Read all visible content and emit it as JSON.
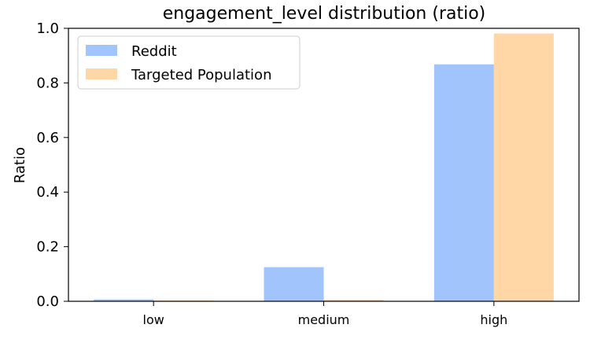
{
  "chart_data": {
    "type": "bar",
    "title": "engagement_level distribution (ratio)",
    "xlabel": "",
    "ylabel": "Ratio",
    "ylim": [
      0,
      1.0
    ],
    "yticks": [
      "0.0",
      "0.2",
      "0.4",
      "0.6",
      "0.8",
      "1.0"
    ],
    "categories": [
      "low",
      "medium",
      "high"
    ],
    "series": [
      {
        "name": "Reddit",
        "color": "#a1c4fd",
        "values": [
          0.007,
          0.125,
          0.868
        ]
      },
      {
        "name": "Targeted Population",
        "color": "#ffd6a5",
        "values": [
          0.003,
          0.006,
          0.981
        ]
      }
    ],
    "legend_position": "top-left",
    "grid": false
  }
}
